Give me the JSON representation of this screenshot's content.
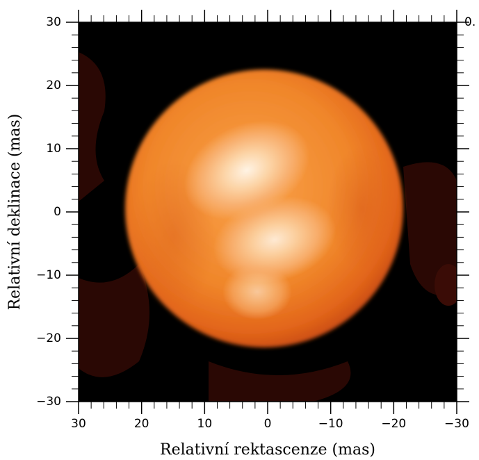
{
  "chart_data": {
    "type": "image",
    "x_label": "Relativní rektascenze (mas)",
    "y_label": "Relativní deklinace (mas)",
    "corner_text": "0.",
    "xlim": [
      30,
      -30
    ],
    "ylim": [
      -30,
      30
    ],
    "xticks": [
      30,
      20,
      10,
      0,
      {
        "value": -10,
        "label": "−10"
      },
      {
        "value": -20,
        "label": "−20"
      },
      {
        "value": -30,
        "label": "−30"
      }
    ],
    "yticks": [
      {
        "value": -30,
        "label": "−30"
      },
      {
        "value": -20,
        "label": "−20"
      },
      {
        "value": -10,
        "label": "−10"
      },
      0,
      10,
      20,
      30
    ]
  }
}
